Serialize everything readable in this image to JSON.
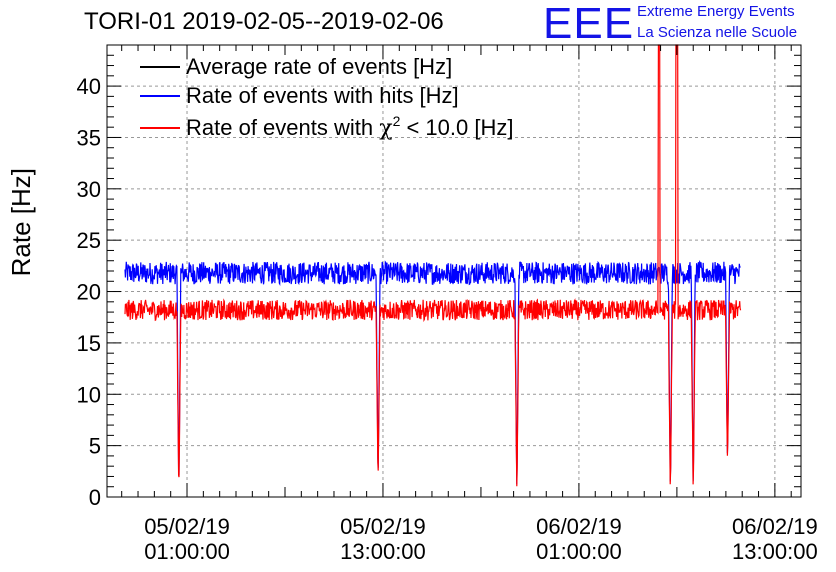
{
  "header": {
    "title": "TORI-01 2019-02-05--2019-02-06",
    "logo_text": "EEE",
    "logo_line1": "Extreme Energy Events",
    "logo_line2": "La Scienza nelle Scuole"
  },
  "colors": {
    "average": "#000000",
    "hits": "#0000ff",
    "chi2": "#ff0000",
    "logo": "#1414e6",
    "grid": "#999999"
  },
  "chart_data": {
    "type": "line",
    "title": "TORI-01 2019-02-05--2019-02-06",
    "ylabel": "Rate [Hz]",
    "xlabel": "",
    "ylim": [
      0,
      44
    ],
    "y_ticks": [
      "0",
      "5",
      "10",
      "15",
      "20",
      "25",
      "30",
      "35",
      "40"
    ],
    "x_range_hours": [
      -3.9,
      38.6
    ],
    "x_ticks": [
      {
        "hour": 1,
        "line1": "05/02/19",
        "line2": "01:00:00"
      },
      {
        "hour": 13,
        "line1": "05/02/19",
        "line2": "13:00:00"
      },
      {
        "hour": 25,
        "line1": "06/02/19",
        "line2": "01:00:00"
      },
      {
        "hour": 37,
        "line1": "06/02/19",
        "line2": "13:00:00"
      }
    ],
    "grid": true,
    "legend_position": "top-left",
    "legend": [
      {
        "label": "Average rate of events [Hz]",
        "color": "#000000"
      },
      {
        "label": "Rate of events with hits [Hz]",
        "color": "#0000ff"
      },
      {
        "label_pre": "Rate of events with ",
        "label_chi": "χ",
        "label_sup": "2",
        "label_post": " < 10.0 [Hz]",
        "color": "#ff0000"
      }
    ],
    "series": [
      {
        "name": "Rate of events with hits [Hz]",
        "color": "#0000ff",
        "baseline": 21.8,
        "noise": 1.1,
        "x_start": -2.8,
        "x_end": 34.9
      },
      {
        "name": "Rate of events with χ2 < 10.0 [Hz]",
        "color": "#ff0000",
        "baseline": 18.2,
        "noise": 1.0,
        "x_start": -2.8,
        "x_end": 34.9
      }
    ],
    "dips": [
      {
        "x": 0.5,
        "min": 0
      },
      {
        "x": 12.7,
        "min": 1
      },
      {
        "x": 21.2,
        "min": 0
      },
      {
        "x": 30.6,
        "min": 0
      },
      {
        "x": 32.0,
        "min": 0
      },
      {
        "x": 34.1,
        "min": 3
      }
    ],
    "spikes": [
      {
        "x": 29.9,
        "max": 44
      },
      {
        "x": 31.0,
        "max": 44
      }
    ]
  }
}
